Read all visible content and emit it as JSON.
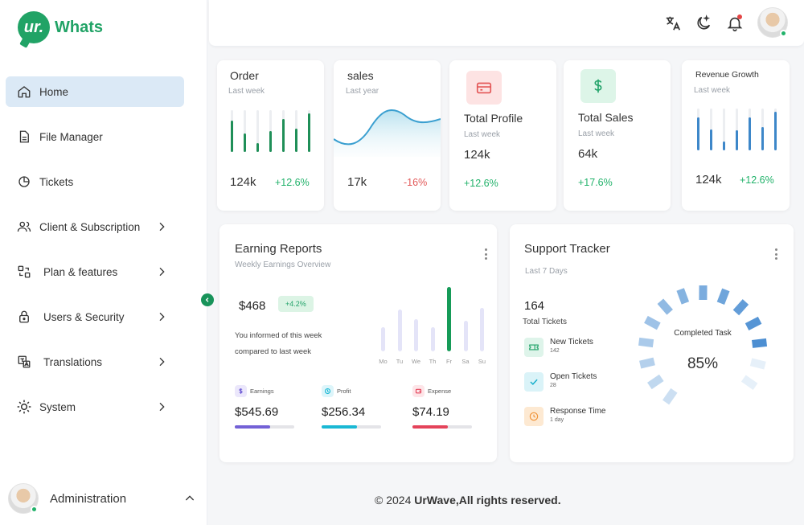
{
  "brand": {
    "logo_mark": "ur.",
    "name": "Whats"
  },
  "sidebar": {
    "items": [
      {
        "label": "Home",
        "icon": "home-icon",
        "active": true
      },
      {
        "label": "File Manager",
        "icon": "file-icon"
      },
      {
        "label": "Tickets",
        "icon": "pie-chart-icon"
      },
      {
        "label": "Client & Subscription",
        "icon": "users-icon",
        "chevron": true
      },
      {
        "label": "Plan & features",
        "icon": "swap-icon",
        "chevron": true
      },
      {
        "label": "Users & Security",
        "icon": "lock-icon",
        "chevron": true
      },
      {
        "label": "Translations",
        "icon": "translate-icon",
        "chevron": true
      },
      {
        "label": "System",
        "icon": "sun-icon",
        "chevron": true
      }
    ],
    "admin_label": "Administration"
  },
  "header": {
    "icons": [
      "translate-icon",
      "moon-icon",
      "bell-icon",
      "avatar"
    ]
  },
  "stats": {
    "order": {
      "title": "Order",
      "sub": "Last week",
      "value": "124k",
      "change": "+12.6%",
      "bars": [
        0.75,
        0.45,
        0.22,
        0.5,
        0.78,
        0.55,
        0.92
      ]
    },
    "sales": {
      "title": "sales",
      "sub": "Last year",
      "value": "17k",
      "change": "-16%"
    },
    "profile": {
      "title": "Total Profile",
      "sub": "Last week",
      "value": "124k",
      "change": "+12.6%"
    },
    "total_sales": {
      "title": "Total Sales",
      "sub": "Last week",
      "value": "64k",
      "change": "+17.6%"
    },
    "revenue": {
      "title": "Revenue Growth",
      "sub": "Last week",
      "value": "124k",
      "change": "+12.6%",
      "bars": [
        0.78,
        0.5,
        0.22,
        0.48,
        0.78,
        0.55,
        0.92
      ]
    }
  },
  "earning": {
    "title": "Earning Reports",
    "sub": "Weekly Earnings Overview",
    "amount": "$468",
    "change": "+4.2%",
    "desc1": "You informed of this week",
    "desc2": "compared to last week",
    "days": [
      "Mo",
      "Tu",
      "We",
      "Th",
      "Fr",
      "Sa",
      "Su"
    ],
    "day_values": [
      0.38,
      0.65,
      0.5,
      0.38,
      1.0,
      0.48,
      0.68
    ],
    "highlight_day": 4,
    "items": [
      {
        "label": "Earnings",
        "value": "$545.69",
        "progress": 0.6,
        "color": "#7361d6",
        "icon_bg": "#ebe7fb"
      },
      {
        "label": "Profit",
        "value": "$256.34",
        "progress": 0.6,
        "color": "#1ab8d4",
        "icon_bg": "#ddf5fa"
      },
      {
        "label": "Expense",
        "value": "$74.19",
        "progress": 0.6,
        "color": "#e4435a",
        "icon_bg": "#fde5e8"
      }
    ]
  },
  "support": {
    "title": "Support Tracker",
    "sub": "Last 7 Days",
    "total": "164",
    "total_label": "Total Tickets",
    "rows": [
      {
        "name": "New Tickets",
        "count": "142",
        "icon": "ticket-icon",
        "bg": "#def4ea",
        "fg": "#23a36a"
      },
      {
        "name": "Open Tickets",
        "count": "28",
        "icon": "check-icon",
        "bg": "#daf3f8",
        "fg": "#1ab0cc"
      },
      {
        "name": "Response Time",
        "count": "1 day",
        "icon": "clock-icon",
        "bg": "#fde9d2",
        "fg": "#f0943a"
      }
    ],
    "gauge_label": "Completed Task",
    "gauge_value": "85%",
    "completion": 0.85
  },
  "footer": {
    "copy": "© 2024",
    "brand": "UrWave,All rights reserved."
  }
}
